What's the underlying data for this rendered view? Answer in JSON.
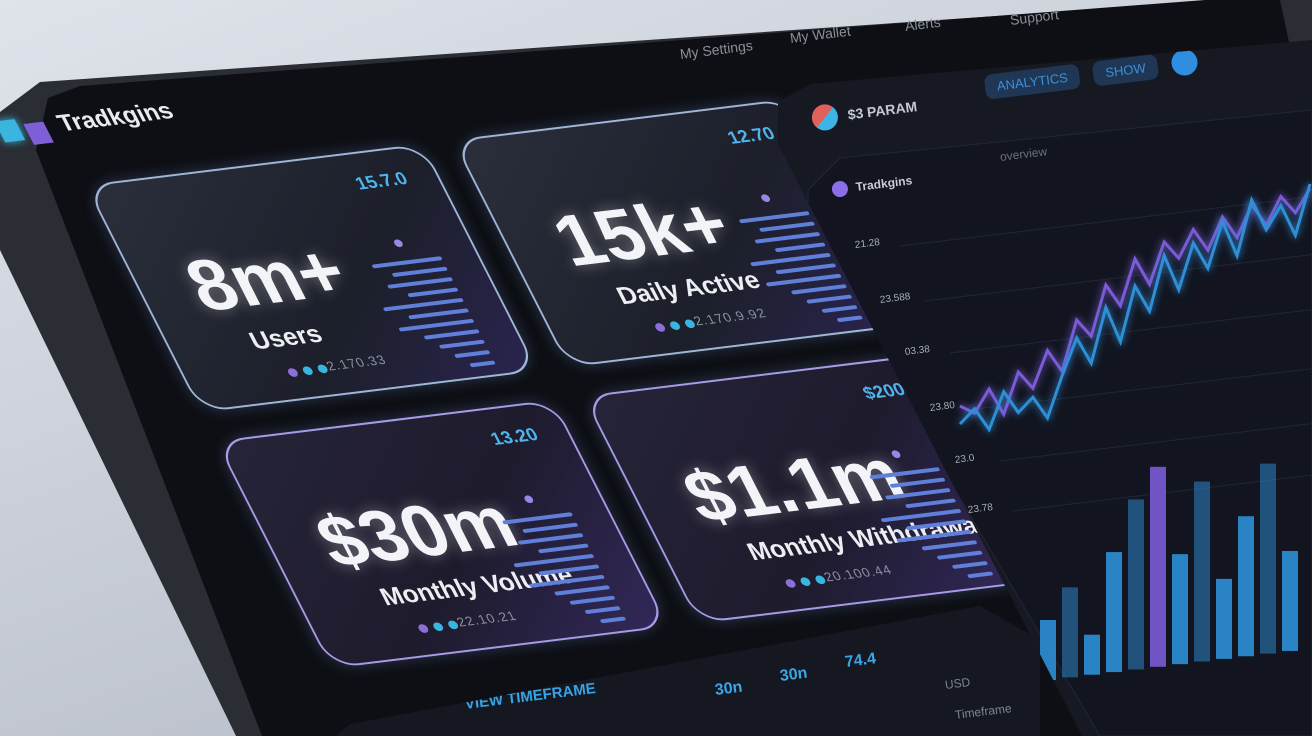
{
  "app": {
    "name": "Tradkgins"
  },
  "nav": {
    "items": [
      "My Settings",
      "My Wallet",
      "Alerts",
      "Support"
    ]
  },
  "cards": [
    {
      "value": "8m+",
      "label": "Users",
      "corner": "15.7.0",
      "meta": "2.170.33",
      "style": "blue"
    },
    {
      "value": "15k+",
      "label": "Daily Active",
      "corner": "12.70",
      "meta": "2.170.9.92",
      "style": "blue"
    },
    {
      "value": "$30m",
      "label": "Monthly Volume",
      "corner": "13.20",
      "meta": "22.10.21",
      "style": "purple"
    },
    {
      "value": "$1.1m",
      "label": "Monthly Withdrawals",
      "corner": "$200",
      "meta": "20.100.44",
      "style": "purple"
    }
  ],
  "panel": {
    "title": "$3 PARAM",
    "tool_label": "ANALYTICS",
    "tool_button": "SHOW",
    "chart_title": "Tradkgins",
    "subtitle": "overview",
    "y_labels": [
      "21.28",
      "23.588",
      "03.38",
      "23.80",
      "23.0",
      "23.78"
    ],
    "series_blue": [
      40,
      55,
      30,
      70,
      45,
      60,
      35,
      80,
      120,
      90,
      150,
      110,
      170,
      140,
      200,
      160,
      210,
      180,
      230,
      190,
      250,
      215,
      240,
      205,
      260
    ],
    "series_purple": [
      60,
      50,
      75,
      45,
      90,
      70,
      110,
      85,
      140,
      120,
      175,
      150,
      200,
      170,
      215,
      195,
      225,
      200,
      235,
      210,
      245,
      220,
      250,
      230,
      255
    ],
    "bars": [
      30,
      45,
      20,
      60,
      85,
      100,
      55,
      90,
      40,
      70,
      95,
      50
    ],
    "bar_colors": [
      "#2e8fd6",
      "#7b5bd6"
    ]
  },
  "bottom": {
    "numbers": [
      "30n",
      "30n",
      "74.4"
    ],
    "link": "VIEW TIMEFRAME",
    "side_items": [
      "USD",
      "Timeframe"
    ]
  },
  "colors": {
    "accent_blue": "#39b5e0",
    "accent_purple": "#7e5fd6",
    "dot_colors": [
      "#8a6fd8",
      "#39b5e0",
      "#39b5e0"
    ]
  }
}
